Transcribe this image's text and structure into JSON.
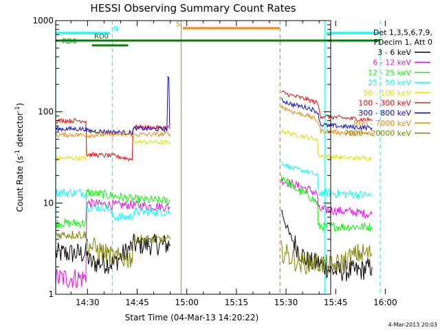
{
  "chart_data": {
    "type": "line",
    "title": "HESSI Observing Summary Count Rates",
    "xlabel": "Start Time (04-Mar-13 14:20:22)",
    "ylabel_parts": {
      "pre": "Count Rate (s",
      "sup1": "-1",
      "mid": " detector",
      "sup2": "-1",
      "post": ")"
    },
    "ylabel": "Count Rate (s-1 detector-1)",
    "y_scale": "log",
    "ylim": [
      1,
      1000
    ],
    "y_ticks": [
      "1",
      "10",
      "100",
      "1000"
    ],
    "x_range_min": [
      20.37,
      103.5
    ],
    "x_ticks": [
      {
        "m": 30,
        "label": "14:30"
      },
      {
        "m": 45,
        "label": "14:45"
      },
      {
        "m": 60,
        "label": "15:00"
      },
      {
        "m": 75,
        "label": "15:15"
      },
      {
        "m": 90,
        "label": "15:30"
      },
      {
        "m": 105,
        "label": "15:45"
      },
      {
        "m": 120,
        "label": "16:00"
      }
    ],
    "legend_header": [
      "Det 1,3,5,6,7,9,",
      "FDecim 1, Att 0"
    ],
    "series": [
      {
        "name": "3 - 6 keV",
        "color": "#000000",
        "segments": [
          [
            [
              20.4,
              2.8
            ],
            [
              29.5,
              2.8
            ],
            [
              31,
              2.2
            ],
            [
              38,
              2.2
            ],
            [
              44,
              3.5
            ],
            [
              55,
              3.5
            ]
          ],
          [
            [
              88.5,
              8.5
            ],
            [
              91,
              4.5
            ],
            [
              94,
              3.0
            ],
            [
              97,
              2.2
            ],
            [
              100,
              2.2
            ],
            [
              104,
              1.8
            ],
            [
              112,
              1.8
            ],
            [
              116,
              2.0
            ]
          ]
        ]
      },
      {
        "name": "6 - 12 keV",
        "color": "#ff00ff",
        "segments": [
          [
            [
              20.4,
              1.5
            ],
            [
              29.5,
              1.5
            ],
            [
              30,
              10
            ],
            [
              38,
              9.5
            ],
            [
              43.5,
              9.5
            ],
            [
              55,
              9.0
            ]
          ],
          [
            [
              88.5,
              18
            ],
            [
              92,
              16
            ],
            [
              97,
              14
            ],
            [
              99.5,
              12.5
            ],
            [
              100.5,
              8.5
            ],
            [
              110,
              8
            ],
            [
              116,
              7.5
            ]
          ]
        ]
      },
      {
        "name": "12 - 25 keV",
        "color": "#00ff00",
        "segments": [
          [
            [
              20.4,
              6
            ],
            [
              29.5,
              6
            ],
            [
              30,
              13
            ],
            [
              38,
              12
            ],
            [
              43.5,
              11
            ],
            [
              55,
              10.5
            ]
          ],
          [
            [
              88.5,
              20
            ],
            [
              92,
              15
            ],
            [
              97,
              12
            ],
            [
              99.5,
              10
            ],
            [
              100.5,
              5.5
            ],
            [
              110,
              5.5
            ],
            [
              116,
              5.5
            ]
          ]
        ]
      },
      {
        "name": "25 - 50 keV",
        "color": "#00ffff",
        "segments": [
          [
            [
              20.4,
              13
            ],
            [
              29.5,
              13
            ],
            [
              30,
              9
            ],
            [
              36,
              9
            ],
            [
              38,
              7
            ],
            [
              43.5,
              7
            ],
            [
              44,
              8
            ],
            [
              55,
              8
            ]
          ],
          [
            [
              88.5,
              28
            ],
            [
              92,
              24
            ],
            [
              97,
              22
            ],
            [
              99.5,
              20
            ],
            [
              100.5,
              13
            ],
            [
              110,
              12.5
            ],
            [
              116,
              12
            ]
          ]
        ]
      },
      {
        "name": "50 - 100 keV",
        "color": "#e0e000",
        "segments": [
          [
            [
              20.4,
              31
            ],
            [
              29.5,
              31
            ],
            [
              30,
              60
            ],
            [
              38,
              58
            ],
            [
              43.5,
              58
            ],
            [
              44,
              47
            ],
            [
              55,
              46
            ]
          ],
          [
            [
              88.5,
              62
            ],
            [
              92,
              57
            ],
            [
              97,
              52
            ],
            [
              99.5,
              50
            ],
            [
              100.5,
              33
            ],
            [
              110,
              31
            ],
            [
              116,
              31
            ]
          ]
        ]
      },
      {
        "name": "100 - 300 keV",
        "color": "#ff0000",
        "segments": [
          [
            [
              20.4,
              80
            ],
            [
              29.5,
              80
            ],
            [
              30,
              34
            ],
            [
              38,
              33
            ],
            [
              43.5,
              30
            ],
            [
              44,
              68
            ],
            [
              55,
              67
            ]
          ],
          [
            [
              88.5,
              165
            ],
            [
              92,
              150
            ],
            [
              97,
              135
            ],
            [
              99.5,
              125
            ],
            [
              100.5,
              90
            ],
            [
              110,
              84
            ],
            [
              116,
              82
            ]
          ]
        ]
      },
      {
        "name": "300 - 800 keV",
        "color": "#0000ff",
        "segments": [
          [
            [
              20.4,
              65
            ],
            [
              29.5,
              65
            ],
            [
              30,
              62
            ],
            [
              38,
              60
            ],
            [
              43.5,
              59
            ],
            [
              44,
              66
            ],
            [
              54,
              64
            ],
            [
              54.6,
              240
            ],
            [
              55,
              70
            ]
          ],
          [
            [
              88.5,
              135
            ],
            [
              92,
              120
            ],
            [
              97,
              110
            ],
            [
              99.5,
              100
            ],
            [
              100.5,
              72
            ],
            [
              110,
              68
            ],
            [
              116,
              67
            ]
          ]
        ]
      },
      {
        "name": "800 - 7000 keV",
        "color": "#ff8000",
        "segments": [
          [
            [
              20.4,
              56
            ],
            [
              29.5,
              56
            ],
            [
              30,
              55
            ],
            [
              38,
              57
            ],
            [
              43.5,
              56
            ],
            [
              55,
              57
            ]
          ],
          [
            [
              88.5,
              115
            ],
            [
              92,
              100
            ],
            [
              97,
              90
            ],
            [
              99.5,
              80
            ],
            [
              100.5,
              62
            ],
            [
              110,
              58
            ],
            [
              116,
              58
            ]
          ]
        ]
      },
      {
        "name": "7000 - 20000 keV",
        "color": "#808000",
        "segments": [
          [
            [
              20.4,
              4.5
            ],
            [
              29.5,
              4.5
            ],
            [
              30,
              3.5
            ],
            [
              38,
              2.5
            ],
            [
              43.5,
              2.5
            ],
            [
              44,
              4.0
            ],
            [
              55,
              4.0
            ]
          ],
          [
            [
              88.5,
              3.0
            ],
            [
              94,
              2.2
            ],
            [
              100,
              2.2
            ],
            [
              104,
              2.0
            ],
            [
              112,
              2.8
            ],
            [
              116,
              2.8
            ]
          ]
        ]
      }
    ],
    "vlines": [
      {
        "m": 20.37,
        "color": "#00ffff",
        "dash": false
      },
      {
        "m": 37.5,
        "color": "#00ffff",
        "dash": true
      },
      {
        "m": 58.3,
        "color": "#ff8000",
        "dash": false
      },
      {
        "m": 88.2,
        "color": "#ff8000",
        "dash": true
      },
      {
        "m": 101.8,
        "color": "#00ffff",
        "dash": false
      },
      {
        "m": 118.5,
        "color": "#00ffff",
        "dash": true
      }
    ],
    "flag_bars": [
      {
        "label": "N",
        "color": "#00ffff",
        "segments": [
          [
            20.4,
            36.8
          ],
          [
            102.2,
            118.3
          ]
        ],
        "y": 48,
        "label_m": 38.5
      },
      {
        "label": "S",
        "color": "#ff8000",
        "segments": [
          [
            58.8,
            88
          ]
        ],
        "y": 41,
        "label_m": 57.4
      },
      {
        "label": "RD0",
        "color": "#008000",
        "segments": [
          [
            20.4,
            118.5
          ]
        ],
        "y": 59,
        "label_m": 34.2
      },
      {
        "label": "RD6",
        "color": "#008000",
        "segments": [
          [
            31.3,
            42.3
          ]
        ],
        "y": 66,
        "label_m": 24.5
      }
    ]
  },
  "footer": {
    "date": "4-Mar-2013 20:03"
  }
}
